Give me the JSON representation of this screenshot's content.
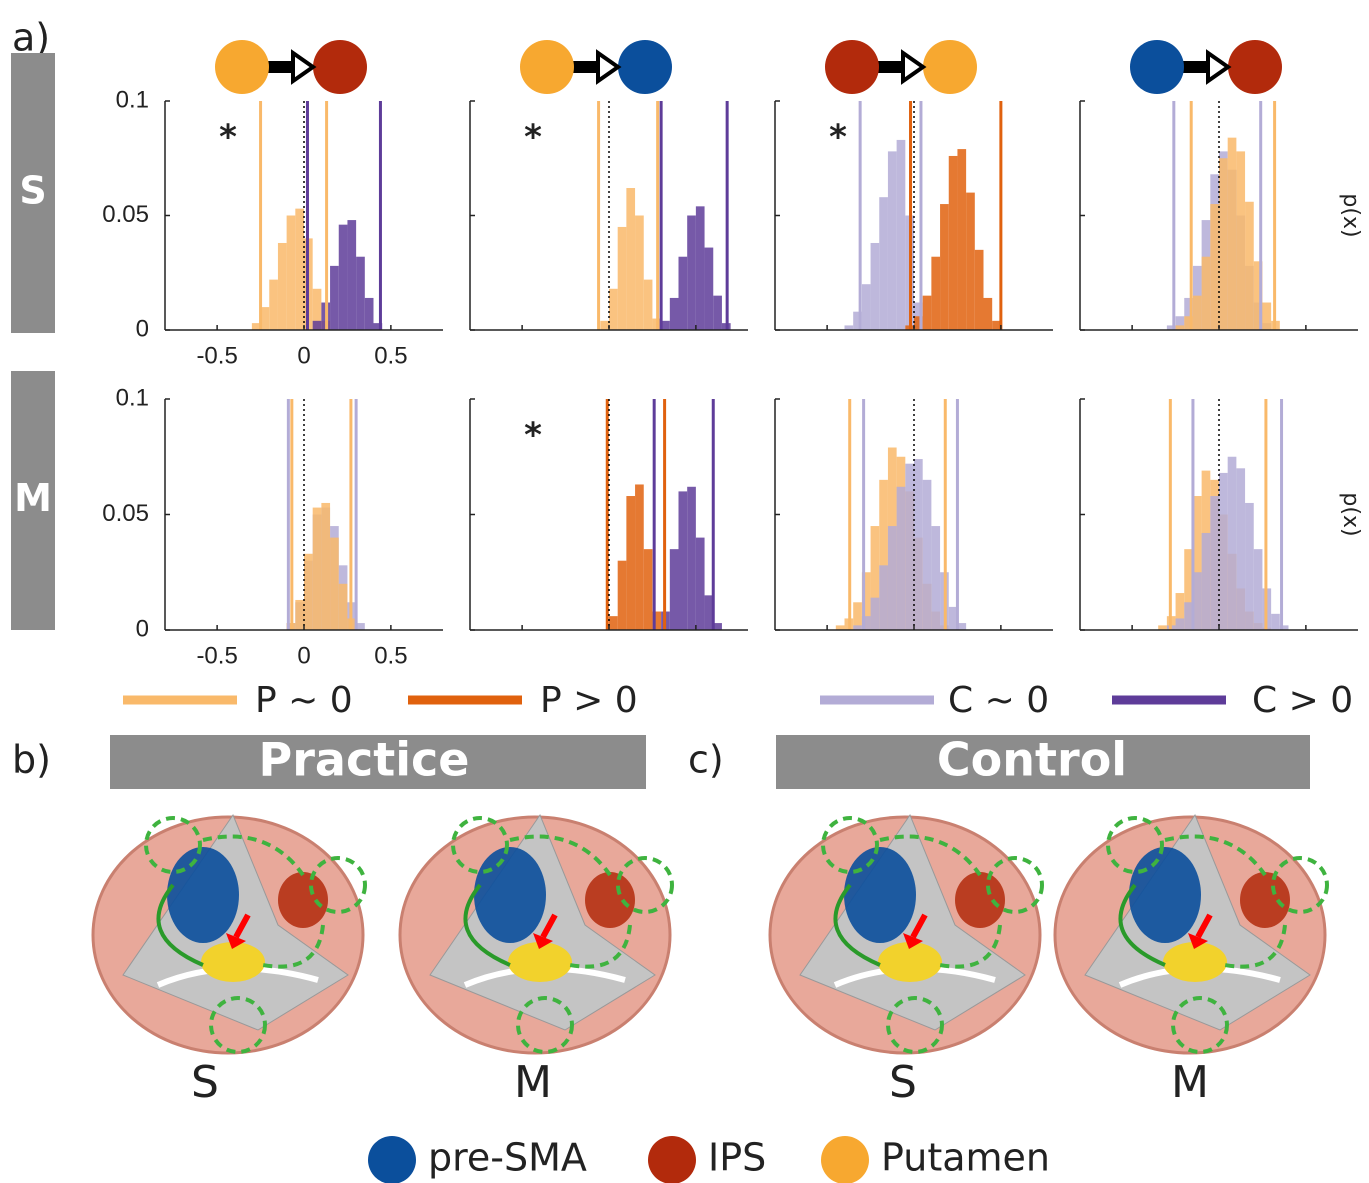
{
  "panel_labels": [
    "a)",
    "b)",
    "c)"
  ],
  "chart_data": {
    "type": "histogram",
    "xlim": [
      -0.8,
      0.8
    ],
    "ylim": [
      0,
      0.1
    ],
    "xticks": [
      -0.5,
      0,
      0.5
    ],
    "yticks": [
      0,
      0.05,
      0.1
    ],
    "zero_line": 0,
    "y_label": "p(x)",
    "legend": [
      {
        "name": "P ~ 0",
        "color": "#f9b96a"
      },
      {
        "name": "P > 0",
        "color": "#e0610e"
      },
      {
        "name": "C ~ 0",
        "color": "#b3acd6"
      },
      {
        "name": "C > 0",
        "color": "#5e3c99"
      }
    ],
    "rows": [
      {
        "label": "S",
        "panels": [
          {
            "marker": "*",
            "series": [
              {
                "color": "#f9b96a",
                "bins": [
                  -0.3,
                  -0.25,
                  -0.2,
                  -0.15,
                  -0.1,
                  -0.05,
                  0,
                  0.05,
                  0.1,
                  0.15
                ],
                "values": [
                  0.003,
                  0.01,
                  0.022,
                  0.038,
                  0.05,
                  0.053,
                  0.04,
                  0.018,
                  0.004
                ],
                "interval": [
                  -0.25,
                  0.13
                ]
              },
              {
                "color": "#5e3c99",
                "bins": [
                  0.05,
                  0.1,
                  0.15,
                  0.2,
                  0.25,
                  0.3,
                  0.35,
                  0.4,
                  0.45
                ],
                "values": [
                  0.004,
                  0.012,
                  0.028,
                  0.046,
                  0.048,
                  0.032,
                  0.014,
                  0.003
                ],
                "interval": [
                  0.02,
                  0.44
                ]
              }
            ]
          },
          {
            "marker": "*",
            "series": [
              {
                "color": "#f9b96a",
                "bins": [
                  -0.05,
                  0,
                  0.05,
                  0.1,
                  0.15,
                  0.2,
                  0.25,
                  0.3
                ],
                "values": [
                  0.004,
                  0.018,
                  0.045,
                  0.062,
                  0.05,
                  0.022,
                  0.005
                ],
                "interval": [
                  -0.06,
                  0.28
                ]
              },
              {
                "color": "#5e3c99",
                "bins": [
                  0.3,
                  0.35,
                  0.4,
                  0.45,
                  0.5,
                  0.55,
                  0.6,
                  0.65,
                  0.7
                ],
                "values": [
                  0.004,
                  0.014,
                  0.032,
                  0.05,
                  0.054,
                  0.036,
                  0.015,
                  0.003
                ],
                "interval": [
                  0.3,
                  0.68
                ]
              }
            ]
          },
          {
            "marker": "*",
            "series": [
              {
                "color": "#b3acd6",
                "bins": [
                  -0.4,
                  -0.35,
                  -0.3,
                  -0.25,
                  -0.2,
                  -0.15,
                  -0.1,
                  -0.05,
                  0,
                  0.05
                ],
                "values": [
                  0.002,
                  0.008,
                  0.02,
                  0.038,
                  0.058,
                  0.078,
                  0.083,
                  0.05,
                  0.012
                ],
                "interval": [
                  -0.31,
                  0.04
                ]
              },
              {
                "color": "#e0610e",
                "bins": [
                  -0.05,
                  0,
                  0.05,
                  0.1,
                  0.15,
                  0.2,
                  0.25,
                  0.3,
                  0.35,
                  0.4,
                  0.45,
                  0.5
                ],
                "values": [
                  0.002,
                  0.006,
                  0.015,
                  0.032,
                  0.055,
                  0.076,
                  0.079,
                  0.06,
                  0.035,
                  0.014,
                  0.004
                ],
                "interval": [
                  -0.02,
                  0.5
                ]
              }
            ]
          },
          {
            "series": [
              {
                "color": "#b3acd6",
                "bins": [
                  -0.3,
                  -0.25,
                  -0.2,
                  -0.15,
                  -0.1,
                  -0.05,
                  0,
                  0.05,
                  0.1,
                  0.15,
                  0.2,
                  0.25,
                  0.3
                ],
                "values": [
                  0.002,
                  0.006,
                  0.014,
                  0.028,
                  0.048,
                  0.068,
                  0.078,
                  0.07,
                  0.05,
                  0.028,
                  0.012,
                  0.003
                ],
                "interval": [
                  -0.26,
                  0.24
                ]
              },
              {
                "color": "#f9b96a",
                "bins": [
                  -0.25,
                  -0.2,
                  -0.15,
                  -0.1,
                  -0.05,
                  0,
                  0.05,
                  0.1,
                  0.15,
                  0.2,
                  0.25,
                  0.3,
                  0.35
                ],
                "values": [
                  0.002,
                  0.006,
                  0.015,
                  0.032,
                  0.055,
                  0.075,
                  0.084,
                  0.078,
                  0.056,
                  0.03,
                  0.012,
                  0.004
                ],
                "interval": [
                  -0.16,
                  0.32
                ]
              }
            ]
          }
        ]
      },
      {
        "label": "M",
        "panels": [
          {
            "series": [
              {
                "color": "#b3acd6",
                "bins": [
                  -0.1,
                  -0.05,
                  0,
                  0.05,
                  0.1,
                  0.15,
                  0.2,
                  0.25,
                  0.3,
                  0.35
                ],
                "values": [
                  0.003,
                  0.012,
                  0.03,
                  0.05,
                  0.053,
                  0.045,
                  0.028,
                  0.012,
                  0.003
                ],
                "interval": [
                  -0.09,
                  0.3
                ]
              },
              {
                "color": "#f9b96a",
                "bins": [
                  -0.1,
                  -0.05,
                  0,
                  0.05,
                  0.1,
                  0.15,
                  0.2,
                  0.25,
                  0.3
                ],
                "values": [
                  0.003,
                  0.013,
                  0.033,
                  0.053,
                  0.055,
                  0.04,
                  0.02,
                  0.005
                ],
                "interval": [
                  -0.07,
                  0.27
                ]
              }
            ]
          },
          {
            "marker": "*",
            "series": [
              {
                "color": "#e0610e",
                "bins": [
                  0,
                  0.05,
                  0.1,
                  0.15,
                  0.2,
                  0.25,
                  0.3
                ],
                "values": [
                  0.006,
                  0.03,
                  0.058,
                  0.063,
                  0.035,
                  0.008
                ],
                "interval": [
                  -0.01,
                  0.32
                ]
              },
              {
                "color": "#5e3c99",
                "bins": [
                  0.3,
                  0.35,
                  0.4,
                  0.45,
                  0.5,
                  0.55,
                  0.6,
                  0.65
                ],
                "values": [
                  0.008,
                  0.035,
                  0.06,
                  0.062,
                  0.04,
                  0.015,
                  0.003
                ],
                "interval": [
                  0.26,
                  0.6
                ]
              }
            ]
          },
          {
            "series": [
              {
                "color": "#f9b96a",
                "bins": [
                  -0.45,
                  -0.4,
                  -0.35,
                  -0.3,
                  -0.25,
                  -0.2,
                  -0.15,
                  -0.1,
                  -0.05,
                  0,
                  0.05,
                  0.1,
                  0.15,
                  0.2
                ],
                "values": [
                  0.002,
                  0.005,
                  0.012,
                  0.025,
                  0.045,
                  0.065,
                  0.079,
                  0.075,
                  0.06,
                  0.04,
                  0.02,
                  0.008,
                  0.002
                ],
                "interval": [
                  -0.37,
                  0.18
                ]
              },
              {
                "color": "#b3acd6",
                "bins": [
                  -0.35,
                  -0.3,
                  -0.25,
                  -0.2,
                  -0.15,
                  -0.1,
                  -0.05,
                  0,
                  0.05,
                  0.1,
                  0.15,
                  0.2,
                  0.25,
                  0.3
                ],
                "values": [
                  0.002,
                  0.006,
                  0.014,
                  0.028,
                  0.045,
                  0.062,
                  0.072,
                  0.074,
                  0.065,
                  0.045,
                  0.025,
                  0.01,
                  0.003
                ],
                "interval": [
                  -0.29,
                  0.25
                ]
              }
            ]
          },
          {
            "series": [
              {
                "color": "#f9b96a",
                "bins": [
                  -0.35,
                  -0.3,
                  -0.25,
                  -0.2,
                  -0.15,
                  -0.1,
                  -0.05,
                  0,
                  0.05,
                  0.1,
                  0.15,
                  0.2,
                  0.25,
                  0.3
                ],
                "values": [
                  0.002,
                  0.006,
                  0.016,
                  0.035,
                  0.058,
                  0.069,
                  0.065,
                  0.05,
                  0.033,
                  0.018,
                  0.008,
                  0.003,
                  0.001
                ],
                "interval": [
                  -0.28,
                  0.27
                ]
              },
              {
                "color": "#b3acd6",
                "bins": [
                  -0.3,
                  -0.25,
                  -0.2,
                  -0.15,
                  -0.1,
                  -0.05,
                  0,
                  0.05,
                  0.1,
                  0.15,
                  0.2,
                  0.25,
                  0.3,
                  0.35,
                  0.4
                ],
                "values": [
                  0.002,
                  0.005,
                  0.012,
                  0.025,
                  0.042,
                  0.058,
                  0.068,
                  0.075,
                  0.07,
                  0.055,
                  0.035,
                  0.018,
                  0.007,
                  0.002
                ],
                "interval": [
                  -0.15,
                  0.36
                ]
              }
            ]
          }
        ]
      }
    ]
  },
  "practice": {
    "title": "Practice",
    "labels": [
      "S",
      "M"
    ]
  },
  "control": {
    "title": "Control",
    "labels": [
      "S",
      "M"
    ]
  },
  "nodes": [
    {
      "name": "pre-SMA",
      "color": "#0b4f9c"
    },
    {
      "name": "IPS",
      "color": "#b22a0c"
    },
    {
      "name": "Putamen",
      "color": "#f7a830"
    }
  ]
}
